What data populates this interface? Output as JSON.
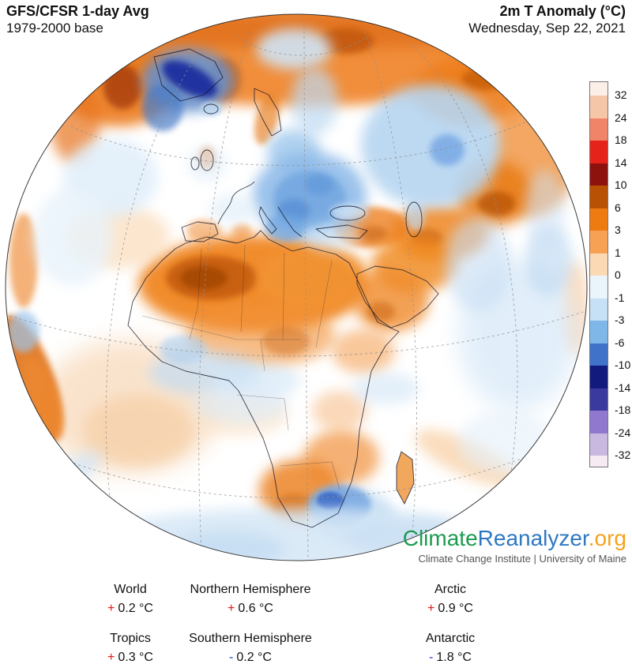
{
  "header": {
    "model": "GFS/CFSR 1-day Avg",
    "baseline": "1979-2000 base",
    "variable": "2m T Anomaly (°C)",
    "date": "Wednesday, Sep 22, 2021"
  },
  "colorbar": {
    "unit": "°C",
    "labels": [
      "32",
      "24",
      "18",
      "14",
      "10",
      "6",
      "3",
      "1",
      "0",
      "-1",
      "-3",
      "-6",
      "-10",
      "-14",
      "-18",
      "-24",
      "-32"
    ],
    "segment_colors": [
      "#fcefe7",
      "#f6c6a8",
      "#ef8468",
      "#e6231a",
      "#8d120d",
      "#b85104",
      "#ee7a12",
      "#f7a155",
      "#fcd9b5",
      "#eaf4fb",
      "#c6e1f5",
      "#7fb8e8",
      "#4072ca",
      "#131a7e",
      "#3a3a9e",
      "#8f78cd",
      "#c9b8e0",
      "#f6ebf2"
    ]
  },
  "logo": {
    "part1": "Climate",
    "part2": "Reanalyzer",
    "part3": ".org",
    "color1": "#1d9b50",
    "color2": "#2e78c2",
    "color3": "#f6a21e",
    "tagline": "Climate Change Institute | University of Maine"
  },
  "stats": {
    "plus_color": "#e01818",
    "minus_color": "#2233dd",
    "rows": [
      [
        {
          "label": "World",
          "sign": "+",
          "value": "0.2 °C"
        },
        {
          "label": "Northern Hemisphere",
          "sign": "+",
          "value": "0.6 °C"
        },
        {
          "label": "Arctic",
          "sign": "+",
          "value": "0.9 °C"
        }
      ],
      [
        {
          "label": "Tropics",
          "sign": "+",
          "value": "0.3 °C"
        },
        {
          "label": "Southern Hemisphere",
          "sign": "-",
          "value": "0.2 °C"
        },
        {
          "label": "Antarctic",
          "sign": "-",
          "value": "1.8 °C"
        }
      ]
    ]
  }
}
